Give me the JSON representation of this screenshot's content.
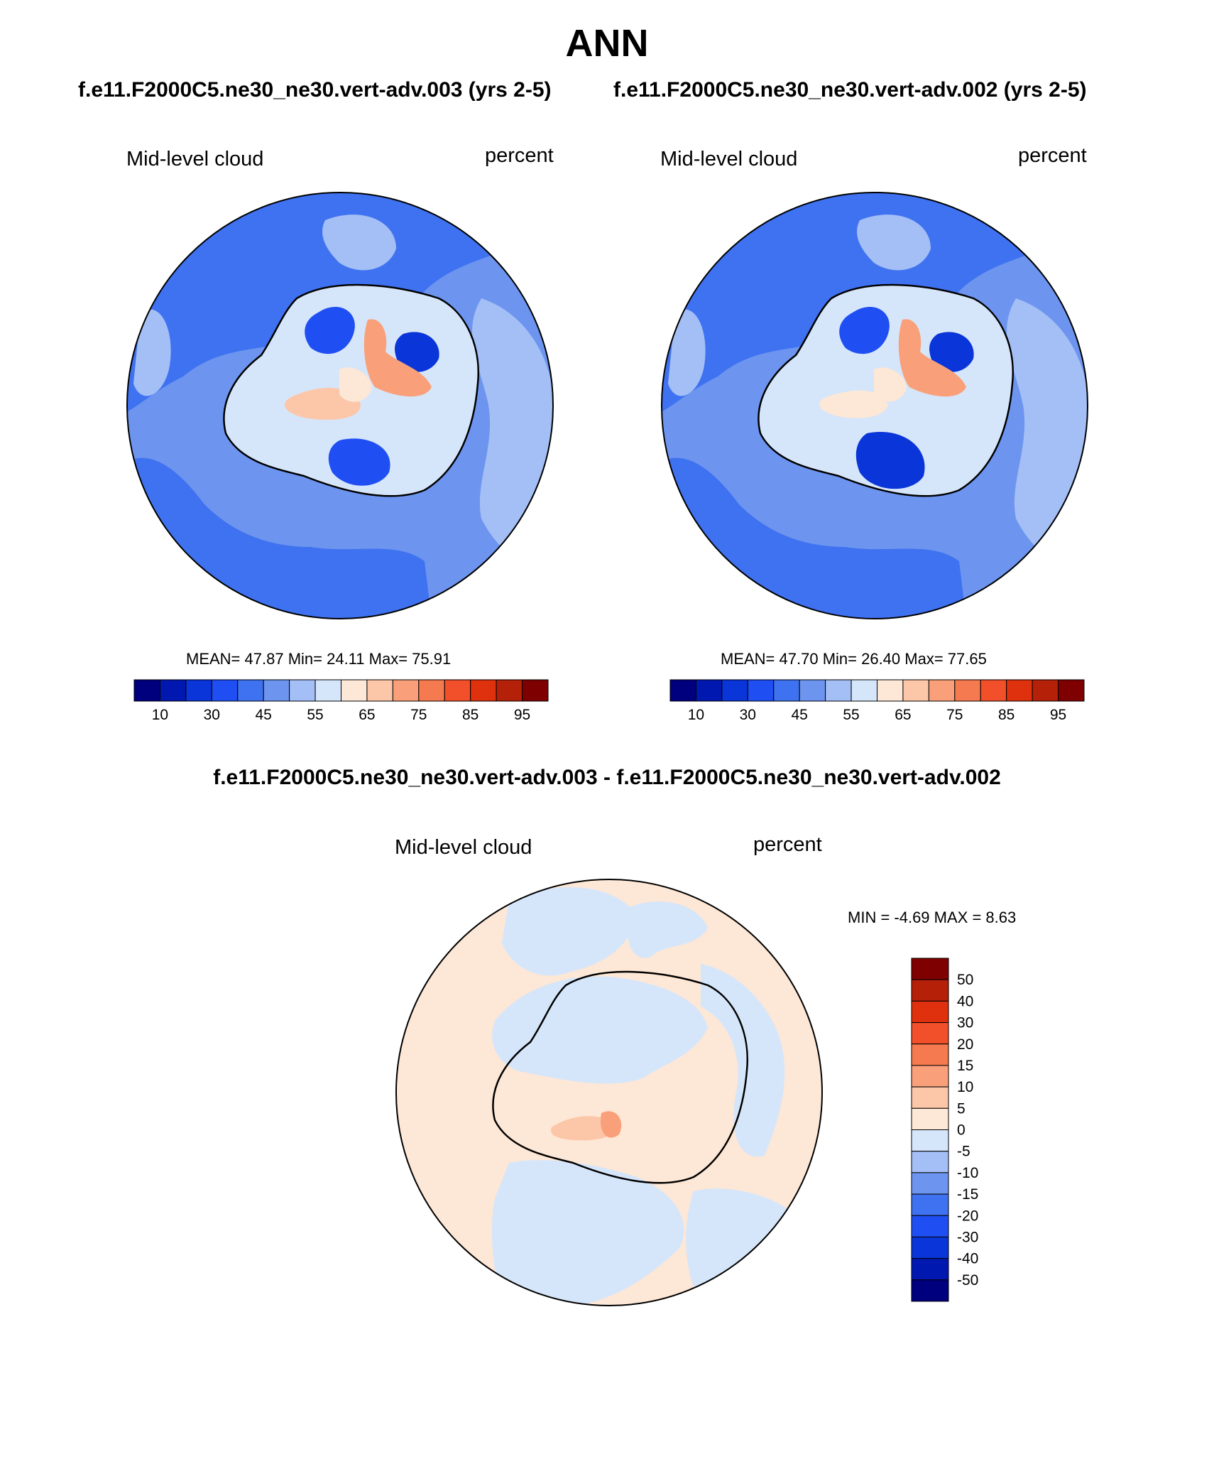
{
  "title": "ANN",
  "case_label_1": "f.e11.F2000C5.ne30_ne30.vert-adv.003 (yrs 2-5)",
  "case_label_2": "f.e11.F2000C5.ne30_ne30.vert-adv.002 (yrs 2-5)",
  "diff_title": "f.e11.F2000C5.ne30_ne30.vert-adv.003 - f.e11.F2000C5.ne30_ne30.vert-adv.002",
  "variable_name": "Mid-level cloud",
  "units": "percent",
  "panel_1": {
    "stats": "MEAN=  47.87  Min=  24.11  Max=  75.91"
  },
  "panel_2": {
    "stats": "MEAN=  47.70  Min=  26.40  Max=  77.65"
  },
  "diff_panel": {
    "stats": "MIN =  -4.69 MAX =   8.63"
  },
  "abs_colorbar": {
    "colors": [
      "#00007f",
      "#0018b0",
      "#0a35d8",
      "#1f4ff3",
      "#3f72f0",
      "#6d95ef",
      "#a4bff5",
      "#d6e6fa",
      "#fde7d6",
      "#fcc6a8",
      "#f9a07a",
      "#f67a4f",
      "#f2502b",
      "#e0310e",
      "#b52008",
      "#7f0000"
    ],
    "tick_labels": [
      "10",
      "30",
      "45",
      "55",
      "65",
      "75",
      "85",
      "95"
    ]
  },
  "diff_colorbar": {
    "colors": [
      "#7f0000",
      "#b52008",
      "#e0310e",
      "#f2502b",
      "#f67a4f",
      "#f9a07a",
      "#fcc6a8",
      "#fde7d6",
      "#d6e6fa",
      "#a4bff5",
      "#6d95ef",
      "#3f72f0",
      "#1f4ff3",
      "#0a35d8",
      "#0018b0",
      "#00007f"
    ],
    "tick_labels": [
      "50",
      "40",
      "30",
      "20",
      "15",
      "10",
      "5",
      "0",
      "-5",
      "-10",
      "-15",
      "-20",
      "-30",
      "-40",
      "-50"
    ]
  }
}
